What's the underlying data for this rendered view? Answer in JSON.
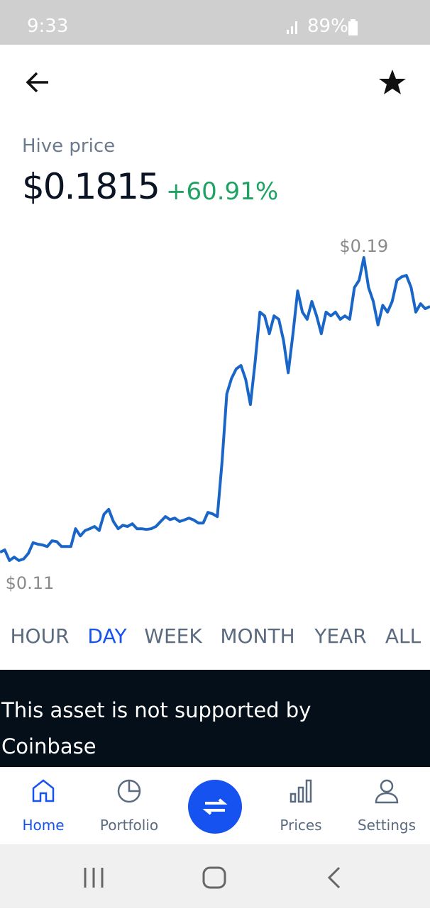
{
  "status_bar": {
    "time": "9:33",
    "battery": "89%"
  },
  "header": {
    "title": "Hive price",
    "price": "$0.1815",
    "change": "+60.91%"
  },
  "chart_data": {
    "type": "line",
    "color": "#1a66c8",
    "high_label": "$0.19",
    "low_label": "$0.11",
    "values": [
      0.1122,
      0.1128,
      0.11,
      0.1109,
      0.11,
      0.1104,
      0.1119,
      0.1147,
      0.1143,
      0.1141,
      0.1137,
      0.1152,
      0.115,
      0.1137,
      0.1137,
      0.1137,
      0.1184,
      0.1165,
      0.1179,
      0.1184,
      0.119,
      0.1179,
      0.1222,
      0.1235,
      0.1203,
      0.1184,
      0.1193,
      0.119,
      0.1197,
      0.1184,
      0.1184,
      0.1182,
      0.1184,
      0.119,
      0.1203,
      0.1216,
      0.1208,
      0.1212,
      0.1203,
      0.1207,
      0.1212,
      0.1207,
      0.1199,
      0.1199,
      0.1227,
      0.1223,
      0.1216,
      0.1362,
      0.154,
      0.1581,
      0.1606,
      0.1615,
      0.1578,
      0.1512,
      0.1625,
      0.1756,
      0.1746,
      0.1699,
      0.1746,
      0.1737,
      0.1681,
      0.1596,
      0.1699,
      0.1812,
      0.1756,
      0.1737,
      0.1784,
      0.1746,
      0.1699,
      0.1756,
      0.1746,
      0.1756,
      0.1737,
      0.1746,
      0.1737,
      0.1821,
      0.184,
      0.19,
      0.1821,
      0.1784,
      0.1722,
      0.1774,
      0.1756,
      0.1784,
      0.184,
      0.1849,
      0.1853,
      0.1821,
      0.1756,
      0.1778,
      0.1765,
      0.1771
    ]
  },
  "time_ranges": {
    "items": [
      "HOUR",
      "DAY",
      "WEEK",
      "MONTH",
      "YEAR",
      "ALL"
    ],
    "selected": 1
  },
  "banner": "This asset is not supported by Coinbase",
  "nav": {
    "items": [
      "Home",
      "Portfolio",
      "Prices",
      "Settings"
    ],
    "active": 0
  }
}
